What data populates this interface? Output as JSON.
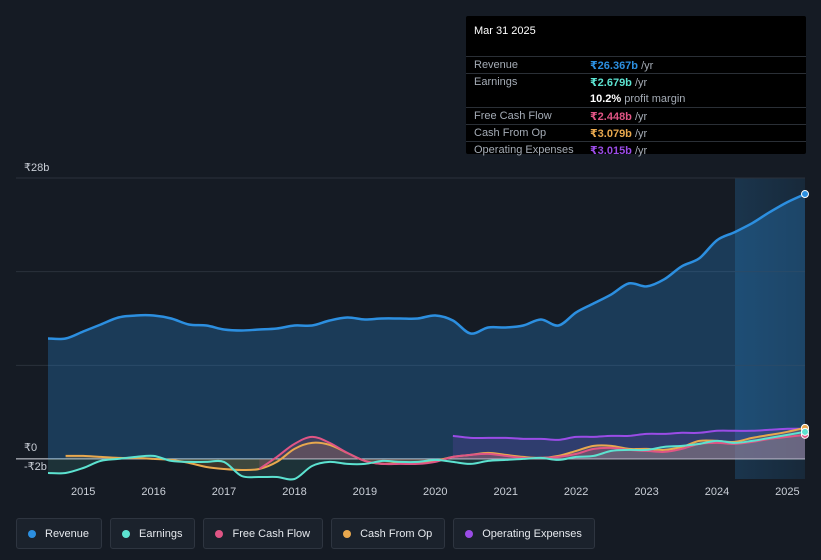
{
  "tooltip": {
    "date": "Mar 31 2025",
    "rows": [
      {
        "label": "Revenue",
        "value": "₹26.367b",
        "unit": " /yr",
        "color": "#2c8fe0"
      },
      {
        "label": "Earnings",
        "value": "₹2.679b",
        "unit": " /yr",
        "color": "#5ce2d0"
      },
      {
        "label": "",
        "value": "10.2%",
        "unit": " profit margin",
        "color": "#ffffff"
      },
      {
        "label": "Free Cash Flow",
        "value": "₹2.448b",
        "unit": " /yr",
        "color": "#e05585"
      },
      {
        "label": "Cash From Op",
        "value": "₹3.079b",
        "unit": " /yr",
        "color": "#e8a84e"
      },
      {
        "label": "Operating Expenses",
        "value": "₹3.015b",
        "unit": " /yr",
        "color": "#9a4ce6"
      }
    ]
  },
  "legend": [
    {
      "label": "Revenue",
      "color": "#2c8fe0"
    },
    {
      "label": "Earnings",
      "color": "#5ce2d0"
    },
    {
      "label": "Free Cash Flow",
      "color": "#e05585"
    },
    {
      "label": "Cash From Op",
      "color": "#e8a84e"
    },
    {
      "label": "Operating Expenses",
      "color": "#9a4ce6"
    }
  ],
  "chart_data": {
    "type": "area",
    "title": "",
    "xlabel": "",
    "ylabel": "",
    "currency_symbol": "₹",
    "y_tick_labels": [
      "₹28b",
      "₹0",
      "-₹2b"
    ],
    "ylim": [
      -2,
      28
    ],
    "x_tick_labels": [
      "2015",
      "2016",
      "2017",
      "2018",
      "2019",
      "2020",
      "2021",
      "2022",
      "2023",
      "2024",
      "2025"
    ],
    "x_tick_values": [
      2015,
      2016,
      2017,
      2018,
      2019,
      2020,
      2021,
      2022,
      2023,
      2024,
      2025
    ],
    "xlim": [
      2014.5,
      2025.25
    ],
    "highlight_start": 2024.25,
    "series": [
      {
        "name": "Revenue",
        "color": "#2c8fe0",
        "x": [
          2014.5,
          2014.75,
          2015.0,
          2015.25,
          2015.5,
          2015.75,
          2016.0,
          2016.25,
          2016.5,
          2016.75,
          2017.0,
          2017.25,
          2017.5,
          2017.75,
          2018.0,
          2018.25,
          2018.5,
          2018.75,
          2019.0,
          2019.25,
          2019.5,
          2019.75,
          2020.0,
          2020.25,
          2020.5,
          2020.75,
          2021.0,
          2021.25,
          2021.5,
          2021.75,
          2022.0,
          2022.25,
          2022.5,
          2022.75,
          2023.0,
          2023.25,
          2023.5,
          2023.75,
          2024.0,
          2024.25,
          2024.5,
          2024.75,
          2025.0,
          2025.25
        ],
        "values": [
          12.0,
          12.0,
          12.7,
          13.4,
          14.1,
          14.3,
          14.3,
          14.0,
          13.4,
          13.3,
          12.9,
          12.8,
          12.9,
          13.0,
          13.3,
          13.3,
          13.8,
          14.1,
          13.9,
          14.0,
          14.0,
          14.0,
          14.3,
          13.8,
          12.5,
          13.1,
          13.1,
          13.3,
          13.9,
          13.3,
          14.6,
          15.5,
          16.4,
          17.5,
          17.2,
          17.9,
          19.2,
          20.0,
          21.8,
          22.6,
          23.5,
          24.6,
          25.6,
          26.4
        ]
      },
      {
        "name": "Earnings",
        "color": "#5ce2d0",
        "x": [
          2014.5,
          2014.75,
          2015.0,
          2015.25,
          2015.5,
          2015.75,
          2016.0,
          2016.25,
          2016.5,
          2016.75,
          2017.0,
          2017.25,
          2017.5,
          2017.75,
          2018.0,
          2018.25,
          2018.5,
          2018.75,
          2019.0,
          2019.25,
          2019.5,
          2019.75,
          2020.0,
          2020.25,
          2020.5,
          2020.75,
          2021.0,
          2021.25,
          2021.5,
          2021.75,
          2022.0,
          2022.25,
          2022.5,
          2022.75,
          2023.0,
          2023.25,
          2023.5,
          2023.75,
          2024.0,
          2024.25,
          2024.5,
          2024.75,
          2025.0,
          2025.25
        ],
        "values": [
          -1.4,
          -1.4,
          -0.9,
          -0.2,
          0.0,
          0.2,
          0.3,
          -0.2,
          -0.3,
          -0.3,
          -0.3,
          -1.7,
          -1.8,
          -1.8,
          -2.0,
          -0.7,
          -0.3,
          -0.5,
          -0.5,
          -0.2,
          -0.3,
          -0.3,
          -0.1,
          -0.3,
          -0.5,
          -0.2,
          -0.1,
          0.0,
          0.1,
          -0.1,
          0.2,
          0.3,
          0.8,
          0.9,
          0.9,
          1.2,
          1.3,
          1.5,
          1.8,
          1.6,
          1.8,
          2.1,
          2.4,
          2.7
        ]
      },
      {
        "name": "Free Cash Flow",
        "color": "#e05585",
        "x": [
          2017.5,
          2017.75,
          2018.0,
          2018.25,
          2018.5,
          2018.75,
          2019.0,
          2019.25,
          2019.5,
          2019.75,
          2020.0,
          2020.25,
          2020.5,
          2020.75,
          2021.0,
          2021.25,
          2021.5,
          2021.75,
          2022.0,
          2022.25,
          2022.5,
          2022.75,
          2023.0,
          2023.25,
          2023.5,
          2023.75,
          2024.0,
          2024.25,
          2024.5,
          2024.75,
          2025.0,
          2025.25
        ],
        "values": [
          -1.0,
          0.2,
          1.5,
          2.2,
          1.6,
          0.6,
          -0.2,
          -0.5,
          -0.5,
          -0.5,
          -0.3,
          0.2,
          0.4,
          0.5,
          0.3,
          0.1,
          0.1,
          0.2,
          0.5,
          1.0,
          1.1,
          0.9,
          0.8,
          0.7,
          1.0,
          1.5,
          1.6,
          1.5,
          1.7,
          2.0,
          2.2,
          2.4
        ]
      },
      {
        "name": "Cash From Op",
        "color": "#e8a84e",
        "x": [
          2014.75,
          2015.0,
          2015.25,
          2015.5,
          2015.75,
          2016.0,
          2016.25,
          2016.5,
          2016.75,
          2017.0,
          2017.25,
          2017.5,
          2017.75,
          2018.0,
          2018.25,
          2018.5,
          2018.75,
          2019.0,
          2019.25,
          2019.5,
          2019.75,
          2020.0,
          2020.25,
          2020.5,
          2020.75,
          2021.0,
          2021.25,
          2021.5,
          2021.75,
          2022.0,
          2022.25,
          2022.5,
          2022.75,
          2023.0,
          2023.25,
          2023.5,
          2023.75,
          2024.0,
          2024.25,
          2024.5,
          2024.75,
          2025.0,
          2025.25
        ],
        "values": [
          0.3,
          0.3,
          0.2,
          0.1,
          0.1,
          0.0,
          -0.1,
          -0.4,
          -0.8,
          -1.0,
          -1.1,
          -1.0,
          -0.3,
          1.0,
          1.6,
          1.4,
          0.6,
          -0.2,
          -0.5,
          -0.4,
          -0.4,
          -0.2,
          0.2,
          0.4,
          0.6,
          0.4,
          0.2,
          0.1,
          0.3,
          0.8,
          1.3,
          1.3,
          1.0,
          1.0,
          0.9,
          1.2,
          1.8,
          1.8,
          1.7,
          2.1,
          2.4,
          2.7,
          3.1
        ]
      },
      {
        "name": "Operating Expenses",
        "color": "#9a4ce6",
        "x": [
          2020.25,
          2020.5,
          2020.75,
          2021.0,
          2021.25,
          2021.5,
          2021.75,
          2022.0,
          2022.25,
          2022.5,
          2022.75,
          2023.0,
          2023.25,
          2023.5,
          2023.75,
          2024.0,
          2024.25,
          2024.5,
          2024.75,
          2025.0,
          2025.25
        ],
        "values": [
          2.3,
          2.1,
          2.1,
          2.1,
          2.0,
          2.0,
          1.9,
          2.2,
          2.2,
          2.3,
          2.3,
          2.5,
          2.5,
          2.6,
          2.6,
          2.8,
          2.8,
          2.8,
          2.9,
          3.0,
          3.0
        ]
      }
    ]
  }
}
